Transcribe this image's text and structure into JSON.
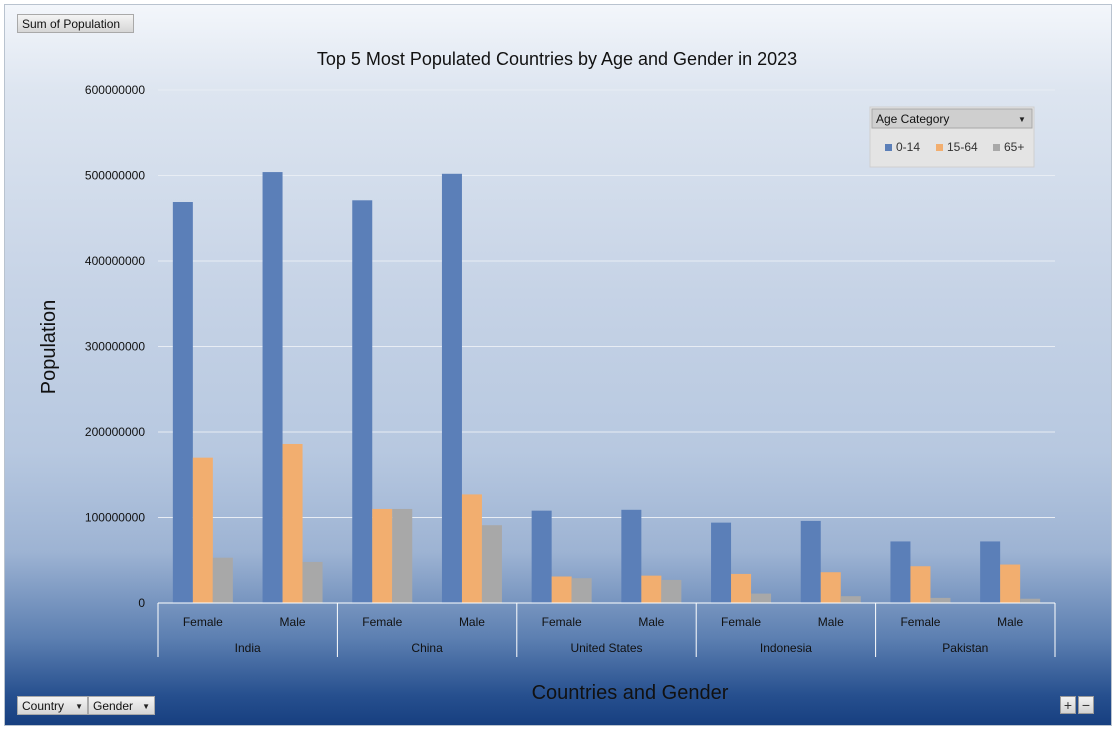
{
  "field_buttons": {
    "values_field": "Sum of Population",
    "axis_fields": [
      "Country",
      "Gender"
    ],
    "legend_field": "Age Category"
  },
  "zoom_controls": {
    "expand": "+",
    "collapse": "−"
  },
  "chart_data": {
    "type": "bar",
    "title": "Top 5 Most Populated Countries by Age and Gender in 2023",
    "xlabel": "Countries and Gender",
    "ylabel": "Population",
    "ylim": [
      0,
      600000000
    ],
    "yticks": [
      "0",
      "100000000",
      "200000000",
      "300000000",
      "400000000",
      "500000000",
      "600000000"
    ],
    "ytick_values": [
      0,
      100000000,
      200000000,
      300000000,
      400000000,
      500000000,
      600000000
    ],
    "grid": true,
    "legend_position": "top-right",
    "groups": [
      "India",
      "China",
      "United States",
      "Indonesia",
      "Pakistan"
    ],
    "categories": [
      "Female",
      "Male",
      "Female",
      "Male",
      "Female",
      "Male",
      "Female",
      "Male",
      "Female",
      "Male"
    ],
    "series": [
      {
        "name": "0-14",
        "color": "#5b7fb8",
        "values": [
          469000000,
          504000000,
          471000000,
          502000000,
          108000000,
          109000000,
          94000000,
          96000000,
          72000000,
          72000000
        ]
      },
      {
        "name": "15-64",
        "color": "#f2ae6f",
        "values": [
          170000000,
          186000000,
          110000000,
          127000000,
          31000000,
          32000000,
          34000000,
          36000000,
          43000000,
          45000000
        ]
      },
      {
        "name": "65+",
        "color": "#a8a8a8",
        "values": [
          53000000,
          48000000,
          110000000,
          91000000,
          29000000,
          27000000,
          11000000,
          8000000,
          6000000,
          5000000
        ]
      }
    ]
  }
}
